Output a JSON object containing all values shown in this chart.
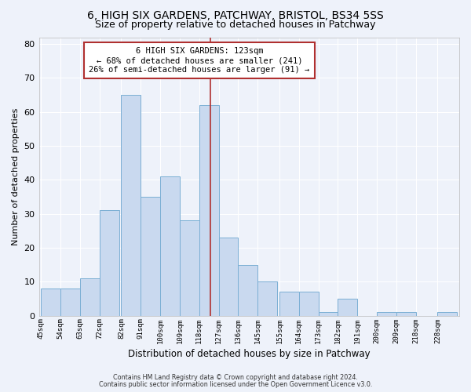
{
  "title1": "6, HIGH SIX GARDENS, PATCHWAY, BRISTOL, BS34 5SS",
  "title2": "Size of property relative to detached houses in Patchway",
  "xlabel": "Distribution of detached houses by size in Patchway",
  "ylabel": "Number of detached properties",
  "footer1": "Contains HM Land Registry data © Crown copyright and database right 2024.",
  "footer2": "Contains public sector information licensed under the Open Government Licence v3.0.",
  "annotation_line1": "6 HIGH SIX GARDENS: 123sqm",
  "annotation_line2": "← 68% of detached houses are smaller (241)",
  "annotation_line3": "26% of semi-detached houses are larger (91) →",
  "bar_left_edges": [
    45,
    54,
    63,
    72,
    82,
    91,
    100,
    109,
    118,
    127,
    136,
    145,
    155,
    164,
    173,
    182,
    191,
    200,
    209,
    218,
    228
  ],
  "bar_heights": [
    8,
    8,
    11,
    31,
    65,
    35,
    41,
    28,
    62,
    23,
    15,
    10,
    7,
    7,
    1,
    5,
    0,
    1,
    1,
    0,
    1
  ],
  "bar_widths": [
    9,
    9,
    9,
    9,
    9,
    9,
    9,
    9,
    9,
    9,
    9,
    9,
    9,
    9,
    9,
    9,
    9,
    9,
    9,
    9,
    9
  ],
  "tick_labels": [
    "45sqm",
    "54sqm",
    "63sqm",
    "72sqm",
    "82sqm",
    "91sqm",
    "100sqm",
    "109sqm",
    "118sqm",
    "127sqm",
    "136sqm",
    "145sqm",
    "155sqm",
    "164sqm",
    "173sqm",
    "182sqm",
    "191sqm",
    "200sqm",
    "209sqm",
    "218sqm",
    "228sqm"
  ],
  "bar_color": "#c9d9ef",
  "bar_edgecolor": "#7bafd4",
  "vline_color": "#b03030",
  "vline_x": 123,
  "background_color": "#eef2fa",
  "grid_color": "#ffffff",
  "ylim": [
    0,
    82
  ],
  "yticks": [
    0,
    10,
    20,
    30,
    40,
    50,
    60,
    70,
    80
  ],
  "title_fontsize": 10,
  "subtitle_fontsize": 9,
  "annotation_box_edgecolor": "#b03030",
  "annotation_box_facecolor": "#ffffff",
  "ann_fontsize": 7.5
}
